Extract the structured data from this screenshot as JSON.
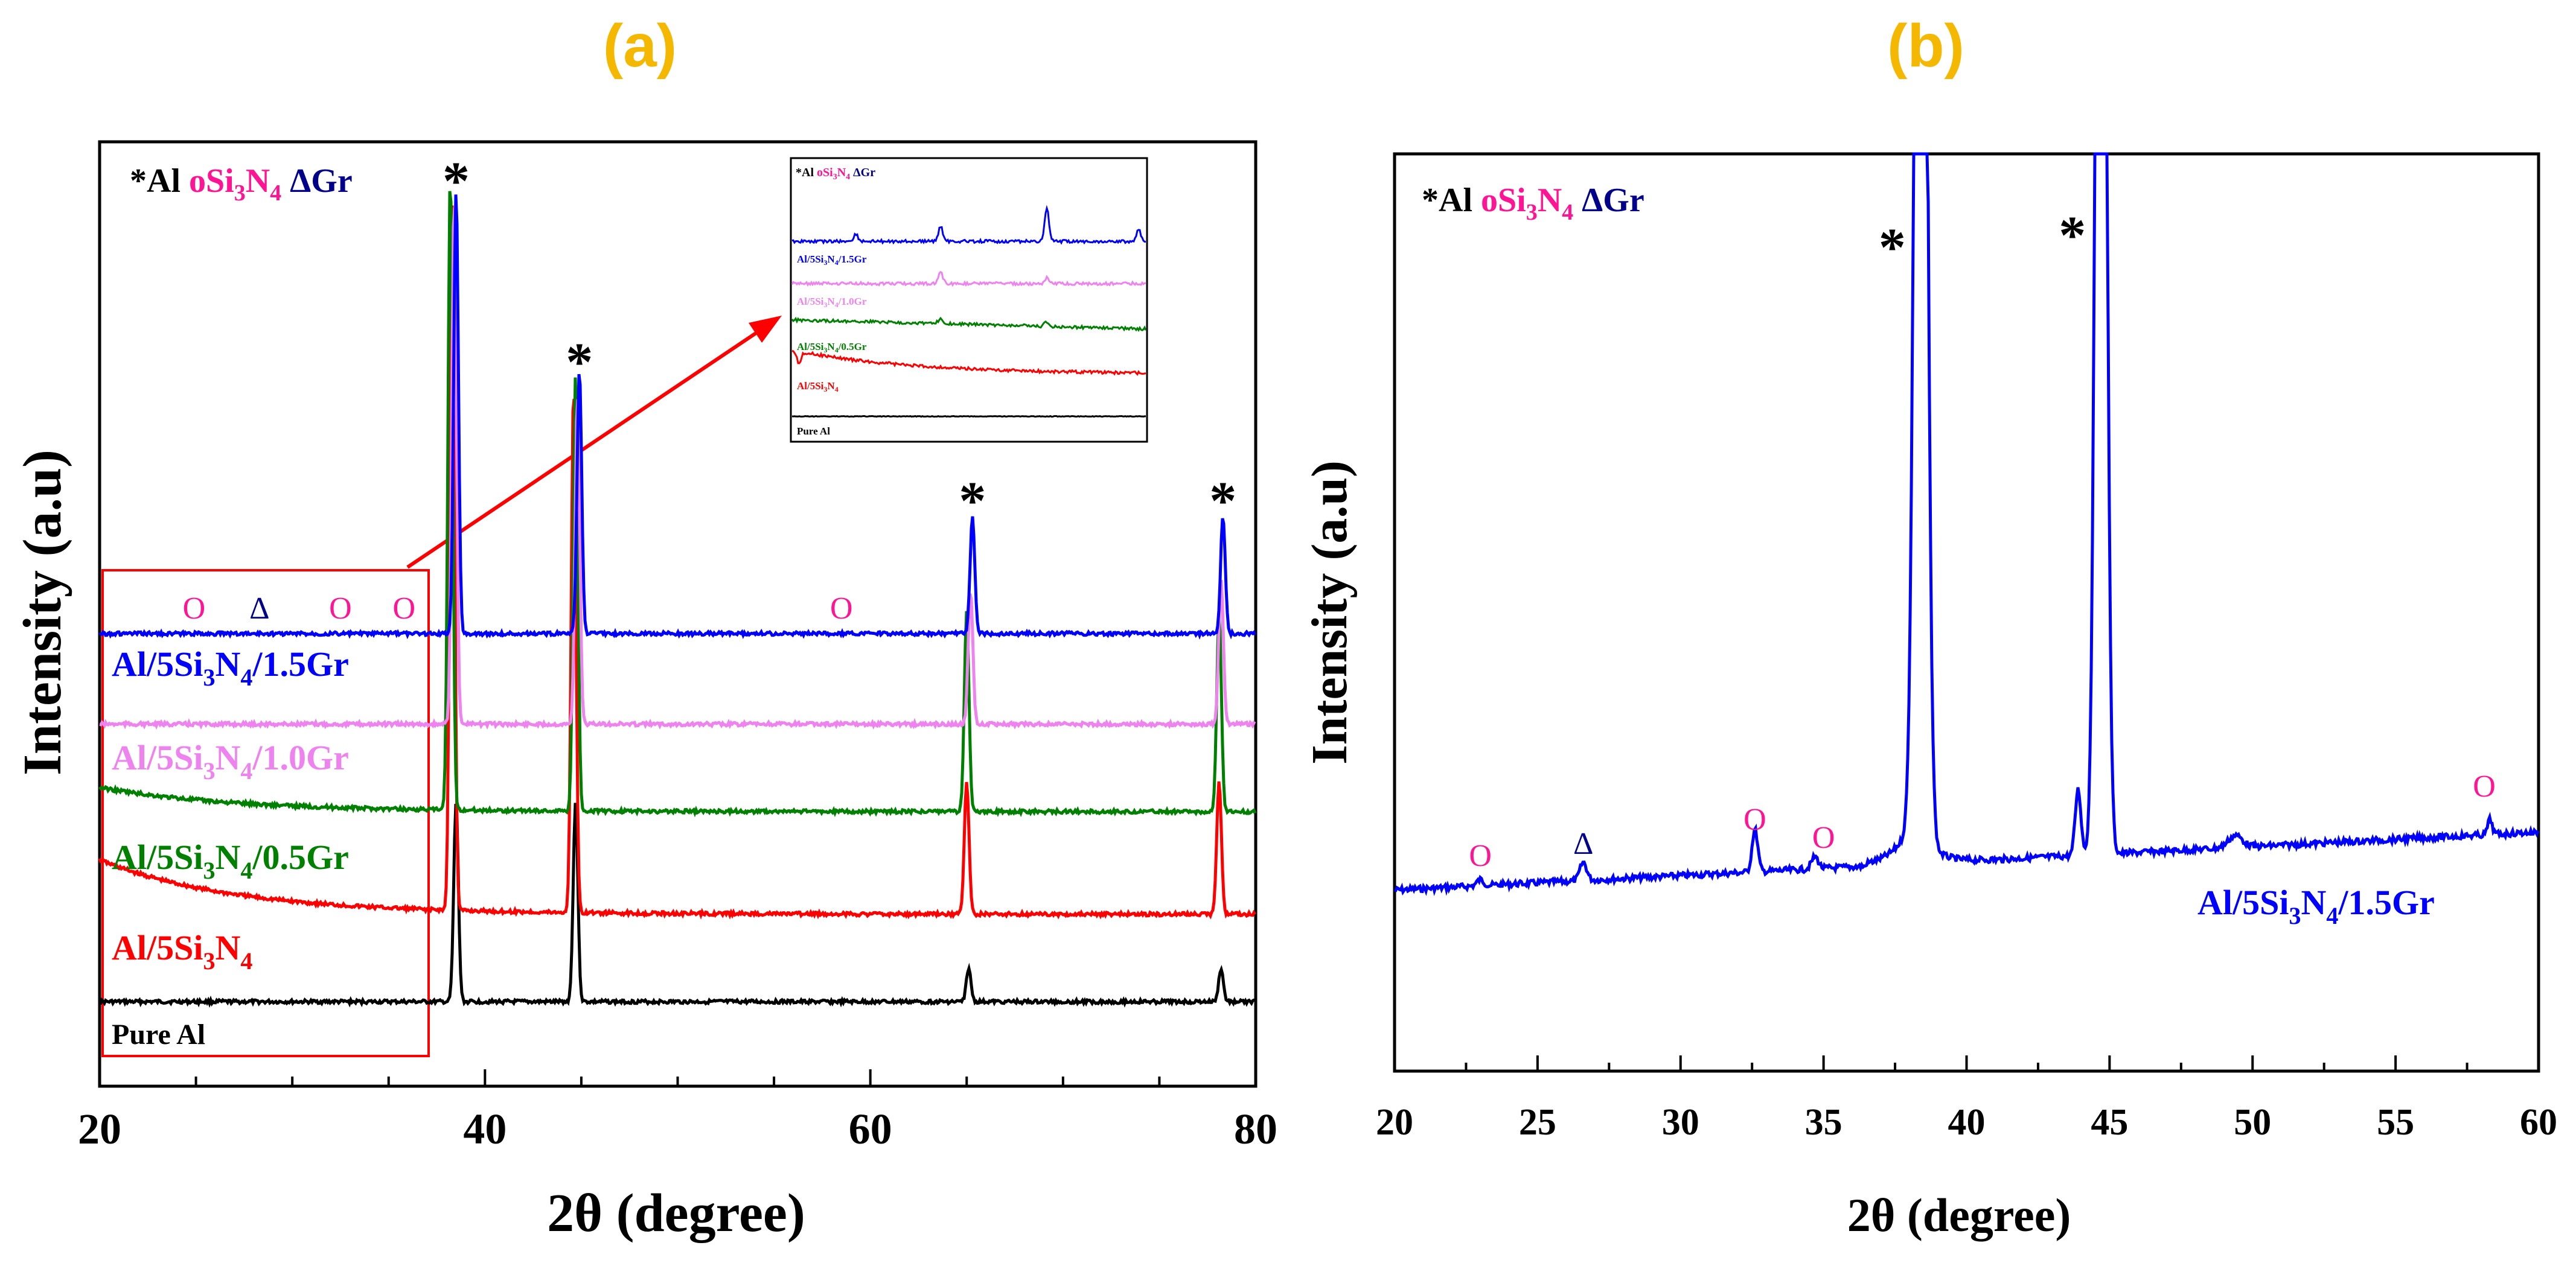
{
  "panels": {
    "a": {
      "letter": "(a)"
    },
    "b": {
      "letter": "(b)"
    }
  },
  "legend": {
    "al": "*Al",
    "si3n4": "oSi3N4",
    "gr": "ΔGr"
  },
  "colors": {
    "pure_al": "#000000",
    "al_si3n4": "#ff0000",
    "al_si3n4_05gr": "#008000",
    "al_si3n4_10gr": "#ee82ee",
    "al_si3n4_15gr": "#0000ff",
    "si3n4_marker": "#ff1493",
    "gr_marker": "#00008b",
    "panel_letter": "#f5b800",
    "box": "#ff0000"
  },
  "chart_data": [
    {
      "type": "line",
      "panel": "a",
      "xlabel": "2θ (degree)",
      "ylabel": "Intensity (a.u)",
      "xlim": [
        20,
        80
      ],
      "xticks": [
        20,
        40,
        60,
        80
      ],
      "grid": false,
      "series": [
        {
          "key": "pure_al",
          "name": "Pure Al",
          "peaks": [
            [
              38.5,
              1.0
            ],
            [
              44.7,
              1.0
            ],
            [
              65.1,
              0.6
            ],
            [
              78.2,
              0.6
            ]
          ]
        },
        {
          "key": "al_si3n4",
          "name": "Al/5Si3N4",
          "peaks": [
            [
              38.3,
              1.0
            ],
            [
              44.6,
              1.0
            ],
            [
              65.0,
              0.7
            ],
            [
              78.1,
              0.7
            ]
          ]
        },
        {
          "key": "al_si3n4_05gr",
          "name": "Al/5Si3N4/0.5Gr",
          "peaks": [
            [
              38.2,
              1.0
            ],
            [
              44.7,
              1.0
            ],
            [
              65.0,
              0.65
            ],
            [
              78.1,
              0.65
            ]
          ]
        },
        {
          "key": "al_si3n4_10gr",
          "name": "Al/5Si3N4/1.0Gr",
          "peaks": [
            [
              38.4,
              1.0
            ],
            [
              44.8,
              1.0
            ],
            [
              65.2,
              0.8
            ],
            [
              78.2,
              0.8
            ]
          ]
        },
        {
          "key": "al_si3n4_15gr",
          "name": "Al/5Si3N4/1.5Gr",
          "peaks": [
            [
              38.5,
              1.0
            ],
            [
              44.9,
              1.0
            ],
            [
              65.3,
              0.8
            ],
            [
              78.3,
              0.8
            ]
          ]
        }
      ],
      "peak_markers": [
        {
          "symbol": "*",
          "x": 38.5
        },
        {
          "symbol": "*",
          "x": 44.9
        },
        {
          "symbol": "*",
          "x": 65.3
        },
        {
          "symbol": "*",
          "x": 78.3
        }
      ],
      "phase_markers": [
        {
          "symbol": "O",
          "phase": "si3n4",
          "x": 24.9
        },
        {
          "symbol": "Δ",
          "phase": "gr",
          "x": 28.3
        },
        {
          "symbol": "O",
          "phase": "si3n4",
          "x": 32.5
        },
        {
          "symbol": "O",
          "phase": "si3n4",
          "x": 35.8
        },
        {
          "symbol": "O",
          "phase": "si3n4",
          "x": 58.5
        }
      ],
      "highlight_range": [
        20,
        37
      ],
      "inset": {
        "legend": "*Al oSi3N4 ΔGr",
        "labels": [
          "Al/5Si3N4/1.5Gr",
          "Al/5Si3N4/1.0Gr",
          "Al/5Si3N4/0.5Gr",
          "Al/5Si3N4",
          "Pure Al"
        ]
      }
    },
    {
      "type": "line",
      "panel": "b",
      "xlabel": "2θ (degree)",
      "ylabel": "Intensity (a.u)",
      "xlim": [
        20,
        60
      ],
      "xticks": [
        20,
        25,
        30,
        35,
        40,
        45,
        50,
        55,
        60
      ],
      "grid": false,
      "series": [
        {
          "key": "al_si3n4_15gr",
          "name": "Al/5Si3N4/1.5Gr",
          "peaks": [
            [
              23.0,
              0.03
            ],
            [
              26.6,
              0.04
            ],
            [
              32.6,
              0.1
            ],
            [
              34.7,
              0.04
            ],
            [
              38.4,
              3.0
            ],
            [
              43.9,
              0.15
            ],
            [
              44.7,
              3.0
            ],
            [
              49.4,
              0.02
            ],
            [
              58.3,
              0.03
            ]
          ]
        }
      ],
      "peak_markers": [
        {
          "symbol": "*",
          "x": 37.4
        },
        {
          "symbol": "*",
          "x": 43.7
        }
      ],
      "phase_markers": [
        {
          "symbol": "O",
          "phase": "si3n4",
          "x": 23.0
        },
        {
          "symbol": "Δ",
          "phase": "gr",
          "x": 26.6
        },
        {
          "symbol": "O",
          "phase": "si3n4",
          "x": 32.6
        },
        {
          "symbol": "O",
          "phase": "si3n4",
          "x": 35.0
        },
        {
          "symbol": "O",
          "phase": "si3n4",
          "x": 58.1
        }
      ]
    }
  ]
}
